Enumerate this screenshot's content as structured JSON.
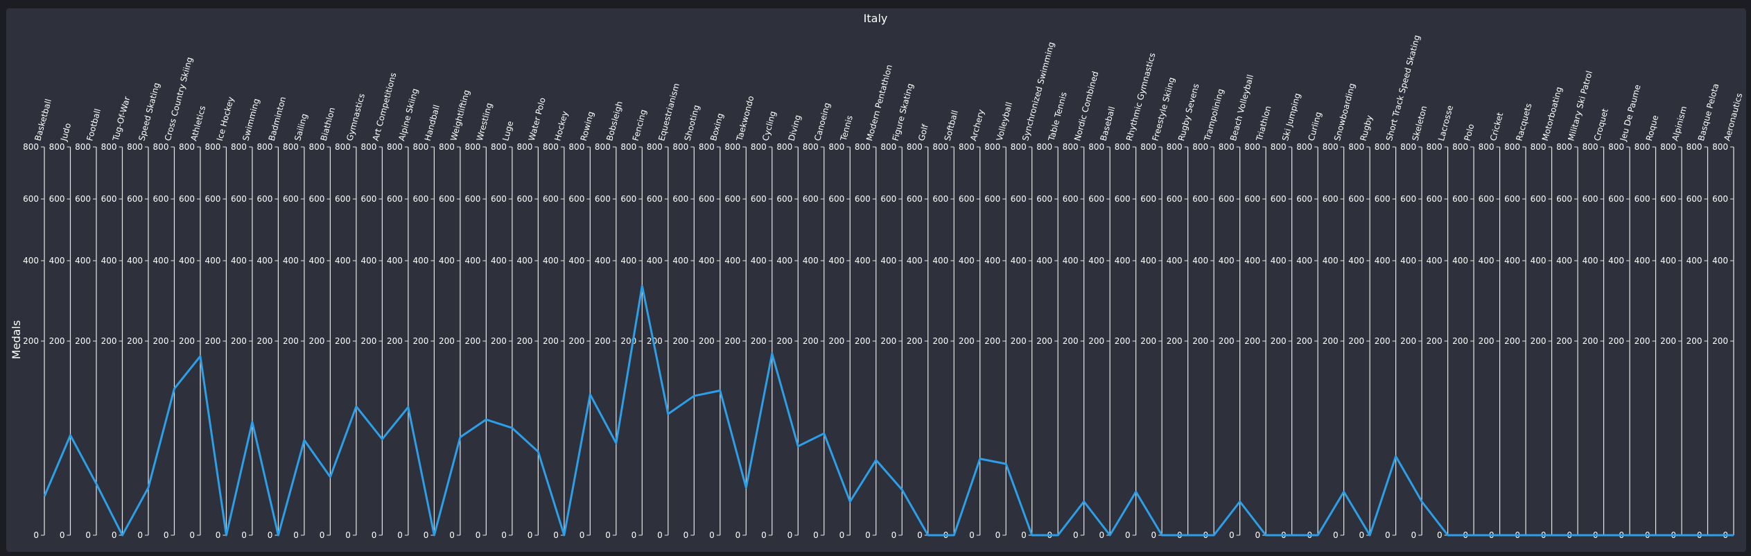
{
  "chart_data": {
    "type": "line",
    "title": "Italy",
    "ylabel": "Medals",
    "xlabel": "",
    "ylim": [
      0,
      800
    ],
    "y_scale": "sqrt",
    "y_ticks": [
      0,
      200,
      400,
      600,
      800
    ],
    "grid": false,
    "line_color": "#2c9fe8",
    "categories": [
      "Basketball",
      "Judo",
      "Football",
      "Tug-Of-War",
      "Speed Skating",
      "Cross Country Skiing",
      "Athletics",
      "Ice Hockey",
      "Swimming",
      "Badminton",
      "Sailing",
      "Biathlon",
      "Gymnastics",
      "Art Competitions",
      "Alpine Skiing",
      "Handball",
      "Weightlifting",
      "Wrestling",
      "Luge",
      "Water Polo",
      "Hockey",
      "Rowing",
      "Bobsleigh",
      "Fencing",
      "Equestrianism",
      "Shooting",
      "Boxing",
      "Taekwondo",
      "Cycling",
      "Diving",
      "Canoeing",
      "Tennis",
      "Modern Pentathlon",
      "Figure Skating",
      "Golf",
      "Softball",
      "Archery",
      "Volleyball",
      "Synchronized Swimming",
      "Table Tennis",
      "Nordic Combined",
      "Baseball",
      "Rhythmic Gymnastics",
      "Freestyle Skiing",
      "Rugby Sevens",
      "Trampolining",
      "Beach Volleyball",
      "Triathlon",
      "Ski Jumping",
      "Curling",
      "Snowboarding",
      "Rugby",
      "Short Track Speed Skating",
      "Skeleton",
      "Lacrosse",
      "Polo",
      "Cricket",
      "Racquets",
      "Motorboating",
      "Military Ski Patrol",
      "Croquet",
      "Jeu De Paume",
      "Roque",
      "Alpinism",
      "Basque Pelota",
      "Aeronautics"
    ],
    "values": [
      8,
      53,
      14,
      0,
      12,
      114,
      170,
      0,
      68,
      0,
      48,
      18,
      88,
      49,
      87,
      0,
      51,
      71,
      61,
      37,
      0,
      105,
      45,
      330,
      78,
      103,
      111,
      12,
      175,
      42,
      55,
      6,
      30,
      11,
      0,
      0,
      31,
      27,
      0,
      0,
      6,
      0,
      10,
      0,
      0,
      0,
      6,
      0,
      0,
      0,
      10,
      0,
      33,
      6,
      0,
      0,
      0,
      0,
      0,
      0,
      0,
      0,
      0,
      0,
      0,
      0
    ]
  }
}
